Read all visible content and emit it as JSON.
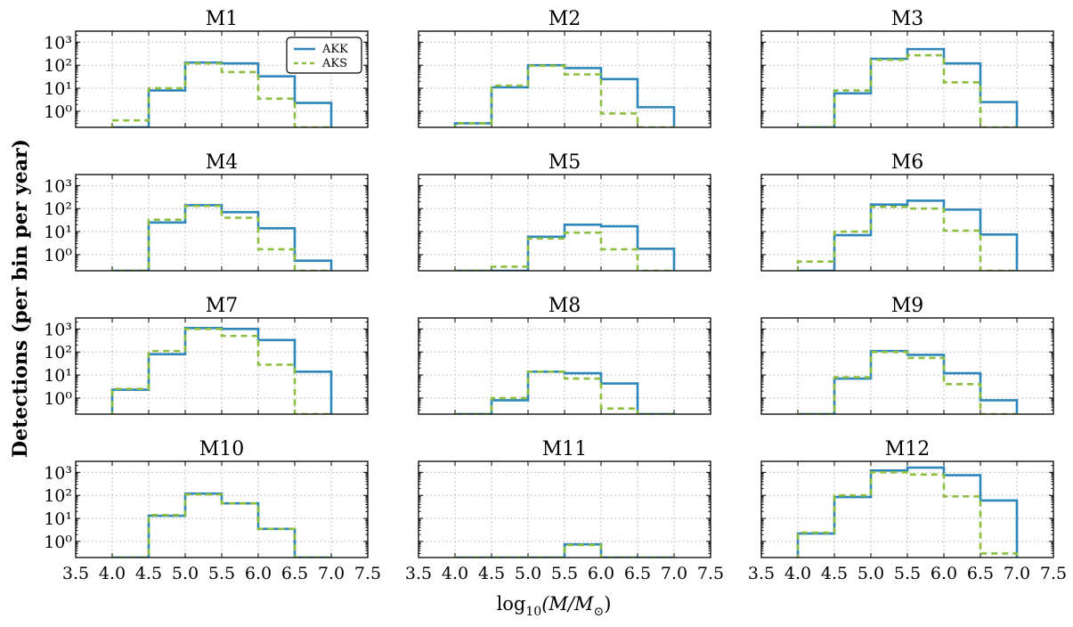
{
  "figure": {
    "ylabel": "Detections (per bin per year)",
    "xlabel_prefix": "log",
    "xlabel_sub": "10",
    "xlabel_body": "(M/M",
    "xlabel_suffix": ")",
    "sun_symbol": "⊙"
  },
  "colors": {
    "AKK": "#2e86ba",
    "AKS": "#8cbf3f",
    "grid": "#b0b0b0"
  },
  "legend": {
    "items": [
      "AKK",
      "AKS"
    ],
    "placement": "upper-right of M1"
  },
  "chart_data": {
    "type": "step-histogram",
    "y_scale": "log",
    "ylim": [
      0.2,
      3000
    ],
    "xlim": [
      3.5,
      7.5
    ],
    "bin_edges": [
      4.0,
      4.5,
      5.0,
      5.5,
      6.0,
      6.5,
      7.0
    ],
    "x_ticks": [
      3.5,
      4.0,
      4.5,
      5.0,
      5.5,
      6.0,
      6.5,
      7.0,
      7.5
    ],
    "x_tick_labels": [
      "3.5",
      "4.0",
      "4.5",
      "5.0",
      "5.5",
      "6.0",
      "6.5",
      "7.0",
      "7.5"
    ],
    "y_ticks": [
      1,
      10,
      100,
      1000
    ],
    "y_tick_labels": [
      "10⁰",
      "10¹",
      "10²",
      "10³"
    ],
    "series_names": [
      "AKK",
      "AKS"
    ],
    "panels": [
      {
        "title": "M1",
        "AKK": [
          0.2,
          8,
          130,
          120,
          33,
          2.3
        ],
        "AKS": [
          0.4,
          10,
          120,
          50,
          3.5,
          0.1
        ]
      },
      {
        "title": "M2",
        "AKK": [
          0.3,
          11,
          100,
          75,
          25,
          1.5
        ],
        "AKS": [
          0.3,
          13,
          95,
          40,
          0.8,
          0.1
        ]
      },
      {
        "title": "M3",
        "AKK": [
          0.2,
          6,
          190,
          500,
          120,
          2.5
        ],
        "AKS": [
          0.2,
          8,
          170,
          270,
          18,
          0.1
        ]
      },
      {
        "title": "M4",
        "AKK": [
          0.1,
          25,
          140,
          70,
          14,
          0.55
        ],
        "AKS": [
          0.1,
          33,
          130,
          40,
          1.7,
          0.1
        ]
      },
      {
        "title": "M5",
        "AKK": [
          0.1,
          0.1,
          6,
          20,
          17,
          1.8
        ],
        "AKS": [
          0.1,
          0.3,
          5,
          9,
          1.7,
          0.1
        ]
      },
      {
        "title": "M6",
        "AKK": [
          0.2,
          7,
          150,
          220,
          90,
          7.5
        ],
        "AKS": [
          0.5,
          10,
          120,
          100,
          11,
          0.1
        ]
      },
      {
        "title": "M7",
        "AKK": [
          2.3,
          80,
          1100,
          1000,
          330,
          14
        ],
        "AKS": [
          2.5,
          110,
          1000,
          500,
          28,
          0.1
        ]
      },
      {
        "title": "M8",
        "AKK": [
          0.1,
          0.8,
          14,
          12,
          4.3,
          0.1
        ],
        "AKS": [
          0.1,
          1.0,
          14,
          7,
          0.35,
          0.1
        ]
      },
      {
        "title": "M9",
        "AKK": [
          0.1,
          7,
          110,
          75,
          12,
          0.8
        ],
        "AKS": [
          0.1,
          8,
          100,
          55,
          4,
          0.1
        ]
      },
      {
        "title": "M10",
        "AKK": [
          0.1,
          13,
          120,
          45,
          3.5,
          0.1
        ],
        "AKS": [
          0.1,
          14,
          110,
          45,
          3.5,
          0.1
        ]
      },
      {
        "title": "M11",
        "AKK": [
          0.1,
          0.1,
          0.1,
          0.75,
          0.1,
          0.1
        ],
        "AKS": [
          0.1,
          0.1,
          0.1,
          0.7,
          0.1,
          0.1
        ]
      },
      {
        "title": "M12",
        "AKK": [
          2.2,
          85,
          1200,
          1600,
          750,
          60
        ],
        "AKS": [
          2.4,
          100,
          1000,
          800,
          90,
          0.3
        ]
      }
    ]
  }
}
